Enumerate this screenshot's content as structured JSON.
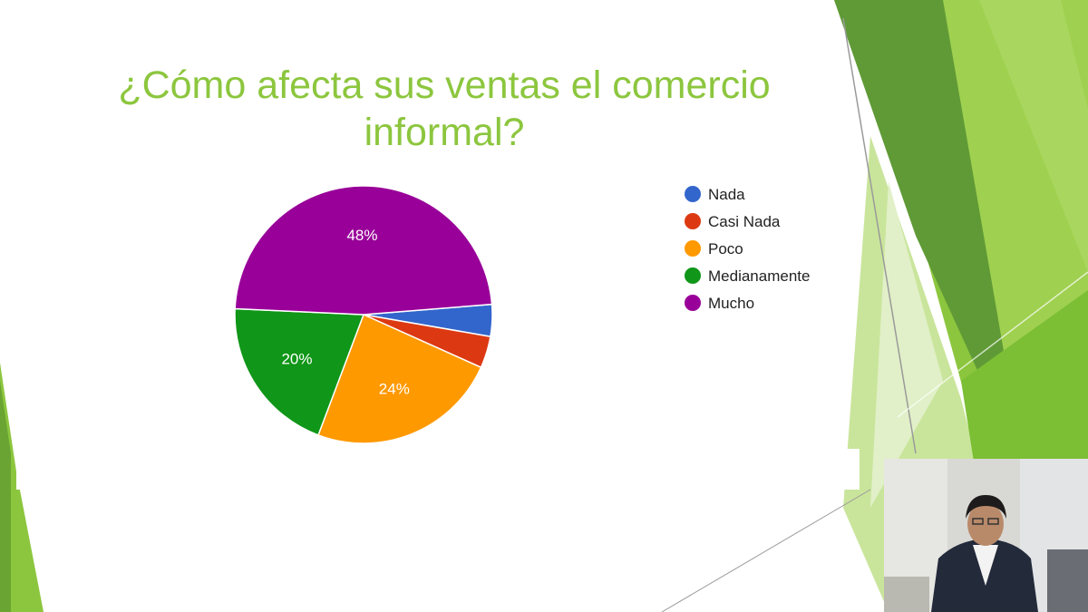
{
  "slide": {
    "title": "¿Cómo afecta sus ventas el comercio informal?",
    "accent_colors": [
      "#8cc63e",
      "#6aa533",
      "#4d8f2c",
      "#b7dc7e",
      "#d9eebb"
    ]
  },
  "chart_data": {
    "type": "pie",
    "title": "",
    "legend_position": "right",
    "categories": [
      "Nada",
      "Casi Nada",
      "Poco",
      "Medianamente",
      "Mucho"
    ],
    "values": [
      4,
      4,
      24,
      20,
      48
    ],
    "value_labels": [
      "",
      "",
      "24%",
      "20%",
      "48%"
    ],
    "colors": [
      "#3366cc",
      "#dc3912",
      "#ff9900",
      "#109618",
      "#990099"
    ]
  },
  "webcam": {
    "label": "presenter-video"
  }
}
